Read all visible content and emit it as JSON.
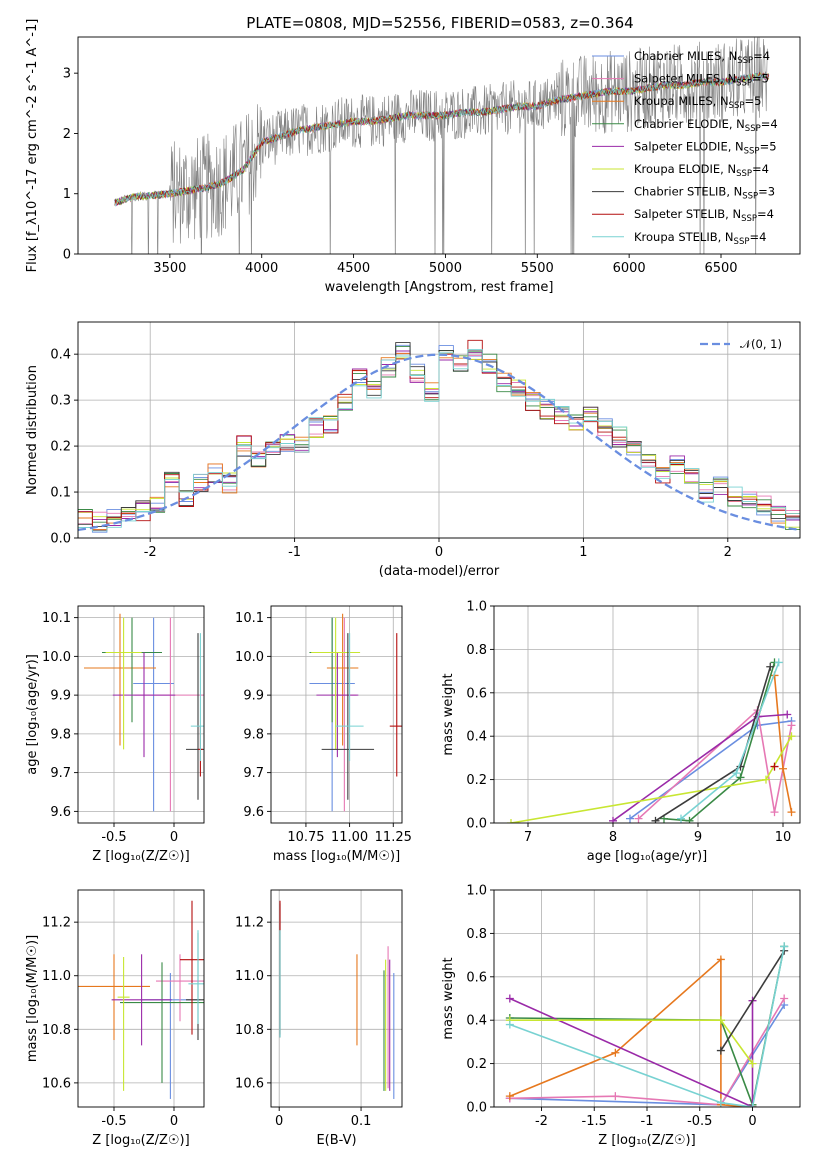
{
  "title": "PLATE=0808, MJD=52556, FIBERID=0583, z=0.364",
  "chart_data": [
    {
      "type": "line",
      "panel": "spectrum",
      "xlabel": "wavelength [Angstrom, rest frame]",
      "ylabel": "Flux [f_λ10^-17 erg cm^-2 s^-1 A^-1]",
      "xlim": [
        3000,
        6930
      ],
      "ylim": [
        0,
        3.6
      ],
      "xticks": [
        3500,
        4000,
        4500,
        5000,
        5500,
        6000,
        6500
      ],
      "yticks": [
        0,
        1,
        2,
        3
      ],
      "grid": false,
      "legend_position": "top-right",
      "series": [
        {
          "name": "Chabrier MILES, N_SSP=4",
          "color": "#6a8ee0"
        },
        {
          "name": "Salpeter MILES, N_SSP=5",
          "color": "#e678b4"
        },
        {
          "name": "Kroupa MILES, N_SSP=5",
          "color": "#e6781e"
        },
        {
          "name": "Chabrier ELODIE, N_SSP=4",
          "color": "#3a8a46"
        },
        {
          "name": "Salpeter ELODIE, N_SSP=5",
          "color": "#9a2aa8"
        },
        {
          "name": "Kroupa ELODIE, N_SSP=4",
          "color": "#c8e632"
        },
        {
          "name": "Chabrier STELIB, N_SSP=3",
          "color": "#3c3c3c"
        },
        {
          "name": "Salpeter STELIB, N_SSP=4",
          "color": "#b40f0f"
        },
        {
          "name": "Kroupa STELIB, N_SSP=4",
          "color": "#78d2d2"
        }
      ],
      "data_color": "#808080",
      "model_curve": {
        "x": [
          3200,
          3300,
          3400,
          3500,
          3600,
          3700,
          3800,
          3900,
          4000,
          4100,
          4200,
          4300,
          4400,
          4500,
          4600,
          4700,
          4800,
          4900,
          5000,
          5100,
          5200,
          5300,
          5400,
          5500,
          5600,
          5700,
          5800,
          5900,
          6000,
          6100,
          6200,
          6300,
          6400,
          6500,
          6600,
          6700
        ],
        "y": [
          0.85,
          0.95,
          0.97,
          1.0,
          1.05,
          1.1,
          1.2,
          1.4,
          1.85,
          1.95,
          2.05,
          2.1,
          2.15,
          2.2,
          2.2,
          2.25,
          2.3,
          2.3,
          2.3,
          2.35,
          2.35,
          2.4,
          2.45,
          2.45,
          2.55,
          2.6,
          2.65,
          2.7,
          2.7,
          2.75,
          2.8,
          2.8,
          2.85,
          2.85,
          2.9,
          2.95
        ]
      }
    },
    {
      "type": "histogram",
      "panel": "residuals",
      "xlabel": "(data-model)/error",
      "ylabel": "Normed distribution",
      "xlim": [
        -2.5,
        2.5
      ],
      "ylim": [
        0,
        0.47
      ],
      "xticks": [
        -2,
        -1,
        0,
        1,
        2
      ],
      "yticks": [
        0.0,
        0.1,
        0.2,
        0.3,
        0.4
      ],
      "grid": true,
      "legend_position": "top-right",
      "reference": {
        "name": "𝒩(0, 1)",
        "color": "#6a8ee0",
        "style": "dashed"
      },
      "bin_edges": [
        -2.5,
        -2.4,
        -2.3,
        -2.2,
        -2.1,
        -2.0,
        -1.9,
        -1.8,
        -1.7,
        -1.6,
        -1.5,
        -1.4,
        -1.3,
        -1.2,
        -1.1,
        -1.0,
        -0.9,
        -0.8,
        -0.7,
        -0.6,
        -0.5,
        -0.4,
        -0.3,
        -0.2,
        -0.1,
        0.0,
        0.1,
        0.2,
        0.3,
        0.4,
        0.5,
        0.6,
        0.7,
        0.8,
        0.9,
        1.0,
        1.1,
        1.2,
        1.3,
        1.4,
        1.5,
        1.6,
        1.7,
        1.8,
        1.9,
        2.0,
        2.1,
        2.2,
        2.3,
        2.4,
        2.5
      ],
      "base_values": [
        0.04,
        0.035,
        0.04,
        0.05,
        0.06,
        0.075,
        0.13,
        0.09,
        0.12,
        0.14,
        0.12,
        0.2,
        0.17,
        0.2,
        0.21,
        0.2,
        0.24,
        0.25,
        0.3,
        0.35,
        0.32,
        0.37,
        0.41,
        0.36,
        0.32,
        0.4,
        0.38,
        0.41,
        0.38,
        0.34,
        0.33,
        0.3,
        0.28,
        0.27,
        0.25,
        0.27,
        0.24,
        0.22,
        0.2,
        0.16,
        0.14,
        0.16,
        0.13,
        0.1,
        0.11,
        0.09,
        0.08,
        0.07,
        0.05,
        0.04
      ]
    },
    {
      "type": "scatter",
      "panel": "age-vs-Z",
      "xlabel": "Z [log₁₀(Z/Z☉)]",
      "ylabel": "age  [log₁₀(age/yr)]",
      "xlim": [
        -0.8,
        0.25
      ],
      "ylim": [
        9.57,
        10.13
      ],
      "xticks": [
        -0.5,
        0.0
      ],
      "yticks": [
        9.6,
        9.7,
        9.8,
        9.9,
        10.0,
        10.1
      ],
      "grid": true,
      "points": [
        {
          "x": -0.17,
          "y": 9.93,
          "xerr": 0.17,
          "yerr": [
            0.33,
            0.17
          ],
          "color": "#6a8ee0"
        },
        {
          "x": -0.03,
          "y": 9.9,
          "xerr": 0.3,
          "yerr": [
            0.3,
            0.2
          ],
          "color": "#e678b4"
        },
        {
          "x": -0.45,
          "y": 9.97,
          "xerr": 0.3,
          "yerr": [
            0.2,
            0.14
          ],
          "color": "#e6781e"
        },
        {
          "x": -0.35,
          "y": 10.01,
          "xerr": 0.25,
          "yerr": [
            0.18,
            0.09
          ],
          "color": "#3a8a46"
        },
        {
          "x": -0.25,
          "y": 9.9,
          "xerr": 0.26,
          "yerr": [
            0.16,
            0.11
          ],
          "color": "#9a2aa8"
        },
        {
          "x": -0.42,
          "y": 10.01,
          "xerr": 0.15,
          "yerr": [
            0.25,
            0.09
          ],
          "color": "#c8e632"
        },
        {
          "x": 0.2,
          "y": 9.76,
          "xerr": 0.1,
          "yerr": [
            0.13,
            0.3
          ],
          "color": "#3c3c3c"
        },
        {
          "x": 0.22,
          "y": 9.76,
          "xerr": 0.02,
          "yerr": [
            0.07,
            0.06
          ],
          "color": "#b40f0f"
        },
        {
          "x": 0.22,
          "y": 9.82,
          "xerr": 0.08,
          "yerr": [
            0.09,
            0.24
          ],
          "color": "#78d2d2"
        }
      ]
    },
    {
      "type": "scatter",
      "panel": "age-vs-mass",
      "xlabel": "mass [log₁₀(M/M☉)]",
      "ylabel": "",
      "xlim": [
        10.55,
        11.3
      ],
      "ylim": [
        9.57,
        10.13
      ],
      "xticks": [
        10.75,
        11.0,
        11.25
      ],
      "xtick_labels": [
        "10.75",
        "11.00",
        "11.25"
      ],
      "yticks": [
        9.6,
        9.7,
        9.8,
        9.9,
        10.0,
        10.1
      ],
      "grid": true,
      "points": [
        {
          "x": 10.9,
          "y": 9.93,
          "xerr": 0.13,
          "yerr": [
            0.33,
            0.17
          ],
          "color": "#6a8ee0"
        },
        {
          "x": 10.97,
          "y": 9.9,
          "xerr": 0.07,
          "yerr": [
            0.3,
            0.2
          ],
          "color": "#e678b4"
        },
        {
          "x": 10.96,
          "y": 9.97,
          "xerr": 0.09,
          "yerr": [
            0.2,
            0.14
          ],
          "color": "#e6781e"
        },
        {
          "x": 10.9,
          "y": 10.01,
          "xerr": 0.13,
          "yerr": [
            0.18,
            0.09
          ],
          "color": "#3a8a46"
        },
        {
          "x": 10.93,
          "y": 9.9,
          "xerr": 0.12,
          "yerr": [
            0.16,
            0.11
          ],
          "color": "#9a2aa8"
        },
        {
          "x": 10.92,
          "y": 10.01,
          "xerr": 0.14,
          "yerr": [
            0.25,
            0.09
          ],
          "color": "#c8e632"
        },
        {
          "x": 10.99,
          "y": 9.76,
          "xerr": 0.15,
          "yerr": [
            0.13,
            0.3
          ],
          "color": "#3c3c3c"
        },
        {
          "x": 11.27,
          "y": 9.82,
          "xerr": 0.04,
          "yerr": [
            0.13,
            0.24
          ],
          "color": "#b40f0f"
        },
        {
          "x": 11.0,
          "y": 9.82,
          "xerr": 0.08,
          "yerr": [
            0.09,
            0.24
          ],
          "color": "#78d2d2"
        }
      ]
    },
    {
      "type": "line",
      "panel": "mass-weight-vs-age",
      "xlabel": "age  [log₁₀(age/yr)]",
      "ylabel": "mass weight",
      "xlim": [
        6.6,
        10.2
      ],
      "ylim": [
        0,
        1
      ],
      "xticks": [
        7,
        8,
        9,
        10
      ],
      "yticks": [
        0.0,
        0.2,
        0.4,
        0.6,
        0.8,
        1.0
      ],
      "grid": true,
      "series": [
        {
          "color": "#6a8ee0",
          "x": [
            8.2,
            9.7,
            10.1
          ],
          "y": [
            0.02,
            0.45,
            0.47
          ]
        },
        {
          "color": "#e678b4",
          "x": [
            8.3,
            9.7,
            9.9,
            10.1
          ],
          "y": [
            0.02,
            0.52,
            0.05,
            0.45
          ]
        },
        {
          "color": "#e6781e",
          "x": [
            9.9,
            10.0,
            10.1
          ],
          "y": [
            0.68,
            0.25,
            0.05
          ]
        },
        {
          "color": "#3a8a46",
          "x": [
            8.6,
            8.9,
            9.5,
            9.9
          ],
          "y": [
            0.02,
            0.01,
            0.21,
            0.74
          ]
        },
        {
          "color": "#9a2aa8",
          "x": [
            8.0,
            9.7,
            10.05
          ],
          "y": [
            0.01,
            0.49,
            0.5
          ]
        },
        {
          "color": "#c8e632",
          "x": [
            6.8,
            9.8,
            10.1
          ],
          "y": [
            0.0,
            0.2,
            0.4
          ]
        },
        {
          "color": "#3c3c3c",
          "x": [
            8.5,
            9.5,
            9.85
          ],
          "y": [
            0.01,
            0.26,
            0.72
          ]
        },
        {
          "color": "#b40f0f",
          "x": [
            9.9
          ],
          "y": [
            0.26
          ]
        },
        {
          "color": "#78d2d2",
          "x": [
            8.8,
            9.45,
            9.95
          ],
          "y": [
            0.02,
            0.23,
            0.74
          ]
        }
      ]
    },
    {
      "type": "scatter",
      "panel": "mass-vs-Z",
      "xlabel": "Z [log₁₀(Z/Z☉)]",
      "ylabel": "mass [log₁₀(M/M☉)]",
      "xlim": [
        -0.8,
        0.25
      ],
      "ylim": [
        10.51,
        11.32
      ],
      "xticks": [
        -0.5,
        0.0
      ],
      "yticks": [
        10.6,
        10.8,
        11.0,
        11.2
      ],
      "grid": true,
      "points": [
        {
          "x": -0.03,
          "y": 10.91,
          "xerr": 0.25,
          "yerr": [
            0.37,
            0.1
          ],
          "color": "#6a8ee0"
        },
        {
          "x": 0.05,
          "y": 10.98,
          "xerr": 0.2,
          "yerr": [
            0.15,
            0.1
          ],
          "color": "#e678b4"
        },
        {
          "x": -0.5,
          "y": 10.96,
          "xerr": 0.3,
          "yerr": [
            0.2,
            0.12
          ],
          "color": "#e6781e"
        },
        {
          "x": -0.1,
          "y": 10.9,
          "xerr": 0.35,
          "yerr": [
            0.3,
            0.15
          ],
          "color": "#3a8a46"
        },
        {
          "x": -0.27,
          "y": 10.91,
          "xerr": 0.25,
          "yerr": [
            0.17,
            0.17
          ],
          "color": "#9a2aa8"
        },
        {
          "x": -0.42,
          "y": 10.92,
          "xerr": 0.05,
          "yerr": [
            0.35,
            0.15
          ],
          "color": "#c8e632"
        },
        {
          "x": 0.2,
          "y": 10.91,
          "xerr": 0.1,
          "yerr": [
            0.15,
            0.25
          ],
          "color": "#3c3c3c"
        },
        {
          "x": 0.15,
          "y": 11.06,
          "xerr": 0.1,
          "yerr": [
            0.28,
            0.22
          ],
          "color": "#b40f0f"
        },
        {
          "x": 0.2,
          "y": 10.97,
          "xerr": 0.08,
          "yerr": [
            0.15,
            0.2
          ],
          "color": "#78d2d2"
        }
      ]
    },
    {
      "type": "scatter",
      "panel": "mass-vs-ebv",
      "xlabel": "E(B-V)",
      "ylabel": "",
      "xlim": [
        -0.01,
        0.15
      ],
      "ylim": [
        10.51,
        11.32
      ],
      "xticks": [
        0.0,
        0.1
      ],
      "yticks": [
        10.6,
        10.8,
        11.0,
        11.2
      ],
      "grid": true,
      "points": [
        {
          "x": 0.14,
          "y": 10.91,
          "xerr": 0,
          "yerr": [
            0.37,
            0.1
          ],
          "color": "#6a8ee0"
        },
        {
          "x": 0.133,
          "y": 10.98,
          "xerr": 0,
          "yerr": [
            0.4,
            0.13
          ],
          "color": "#e678b4"
        },
        {
          "x": 0.095,
          "y": 10.96,
          "xerr": 0,
          "yerr": [
            0.22,
            0.12
          ],
          "color": "#e6781e"
        },
        {
          "x": 0.128,
          "y": 10.9,
          "xerr": 0,
          "yerr": [
            0.33,
            0.12
          ],
          "color": "#3a8a46"
        },
        {
          "x": 0.135,
          "y": 10.91,
          "xerr": 0,
          "yerr": [
            0.34,
            0.15
          ],
          "color": "#9a2aa8"
        },
        {
          "x": 0.13,
          "y": 10.92,
          "xerr": 0,
          "yerr": [
            0.35,
            0.14
          ],
          "color": "#c8e632"
        },
        {
          "x": 0.001,
          "y": 10.97,
          "xerr": 0,
          "yerr": [
            0.2,
            0.3
          ],
          "color": "#3c3c3c"
        },
        {
          "x": 0.001,
          "y": 11.06,
          "xerr": 0,
          "yerr": [
            0.28,
            0.22
          ],
          "color": "#b40f0f"
        },
        {
          "x": 0.001,
          "y": 10.97,
          "xerr": 0,
          "yerr": [
            0.2,
            0.2
          ],
          "color": "#78d2d2"
        }
      ]
    },
    {
      "type": "line",
      "panel": "mass-weight-vs-Z",
      "xlabel": "Z [log₁₀(Z/Z☉)]",
      "ylabel": "mass weight",
      "xlim": [
        -2.45,
        0.45
      ],
      "ylim": [
        0,
        1
      ],
      "xticks": [
        -2.0,
        -1.5,
        -1.0,
        -0.5,
        0.0
      ],
      "yticks": [
        0.0,
        0.2,
        0.4,
        0.6,
        0.8,
        1.0
      ],
      "grid": true,
      "series": [
        {
          "color": "#6a8ee0",
          "x": [
            -2.3,
            -0.3,
            0.3
          ],
          "y": [
            0.04,
            0.01,
            0.47
          ]
        },
        {
          "color": "#e678b4",
          "x": [
            -2.3,
            -1.3,
            -0.3,
            0.3
          ],
          "y": [
            0.04,
            0.05,
            0.01,
            0.5
          ]
        },
        {
          "color": "#e6781e",
          "x": [
            -2.3,
            -1.3,
            -0.3,
            -0.3,
            0.0
          ],
          "y": [
            0.05,
            0.25,
            0.68,
            0.01,
            0.0
          ]
        },
        {
          "color": "#3a8a46",
          "x": [
            -2.3,
            -0.3,
            0.0,
            0.3
          ],
          "y": [
            0.41,
            0.4,
            0.01,
            0.74
          ]
        },
        {
          "color": "#9a2aa8",
          "x": [
            -2.3,
            0.0,
            0.0
          ],
          "y": [
            0.5,
            0.0,
            0.49
          ]
        },
        {
          "color": "#c8e632",
          "x": [
            -2.3,
            -0.3,
            0.0
          ],
          "y": [
            0.4,
            0.4,
            0.2
          ]
        },
        {
          "color": "#3c3c3c",
          "x": [
            -0.3,
            0.3
          ],
          "y": [
            0.26,
            0.72
          ]
        },
        {
          "color": "#b40f0f",
          "x": [
            0.0
          ],
          "y": [
            0.0
          ]
        },
        {
          "color": "#78d2d2",
          "x": [
            -2.3,
            -0.3,
            0.0,
            0.3
          ],
          "y": [
            0.38,
            0.02,
            0.0,
            0.74
          ]
        }
      ]
    }
  ]
}
